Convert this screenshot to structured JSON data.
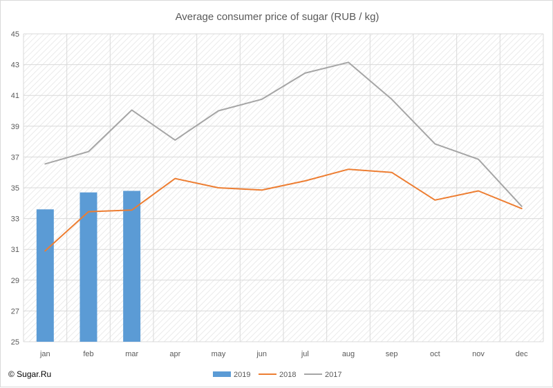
{
  "chart_data": {
    "type": "bar+line",
    "title": "Average consumer price of sugar (RUB / kg)",
    "categories": [
      "jan",
      "feb",
      "mar",
      "apr",
      "may",
      "jun",
      "jul",
      "aug",
      "sep",
      "oct",
      "nov",
      "dec"
    ],
    "ylim": [
      25,
      45
    ],
    "yticks": [
      25,
      27,
      29,
      31,
      33,
      35,
      37,
      39,
      41,
      43,
      45
    ],
    "grid": true,
    "legend_position": "bottom",
    "series": [
      {
        "name": "2019",
        "type": "bar",
        "color": "#5b9bd5",
        "values": [
          33.6,
          34.7,
          34.8,
          null,
          null,
          null,
          null,
          null,
          null,
          null,
          null,
          null
        ]
      },
      {
        "name": "2018",
        "type": "line",
        "color": "#ed7d31",
        "values": [
          30.9,
          33.45,
          33.55,
          35.6,
          35.0,
          34.85,
          35.45,
          36.2,
          36.0,
          34.2,
          34.8,
          33.65
        ]
      },
      {
        "name": "2017",
        "type": "line",
        "color": "#a5a5a5",
        "values": [
          36.55,
          37.35,
          40.05,
          38.1,
          40.0,
          40.75,
          42.45,
          43.15,
          40.75,
          37.85,
          36.85,
          33.8
        ]
      }
    ]
  },
  "source": "© Sugar.Ru"
}
